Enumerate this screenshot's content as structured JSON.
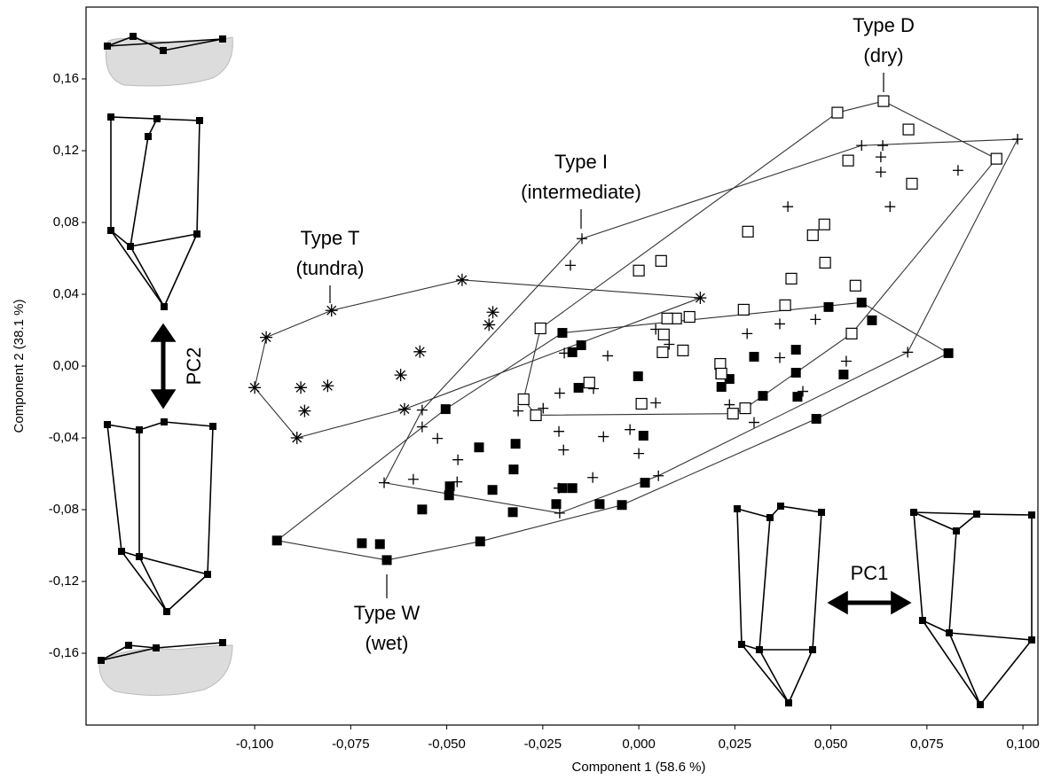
{
  "chart_data": {
    "type": "scatter",
    "x_label": "Component 1 (58.6 %)",
    "y_label": "Component 2 (38.1 %)",
    "xlim": [
      -0.1439,
      0.1039
    ],
    "ylim": [
      -0.2,
      0.2
    ],
    "xticks": [
      {
        "value": -0.1,
        "label": "-0,100"
      },
      {
        "value": -0.075,
        "label": "-0,075"
      },
      {
        "value": -0.05,
        "label": "-0,050"
      },
      {
        "value": -0.025,
        "label": "-0,025"
      },
      {
        "value": 0,
        "label": "0,000"
      },
      {
        "value": 0.025,
        "label": "0,025"
      },
      {
        "value": 0.05,
        "label": "0,050"
      },
      {
        "value": 0.075,
        "label": "0,075"
      },
      {
        "value": 0.1,
        "label": "0,100"
      }
    ],
    "yticks": [
      {
        "value": -0.16,
        "label": "-0,16"
      },
      {
        "value": -0.12,
        "label": "-0,12"
      },
      {
        "value": -0.08,
        "label": "-0,08"
      },
      {
        "value": -0.04,
        "label": "-0,04"
      },
      {
        "value": 0,
        "label": "0,00"
      },
      {
        "value": 0.04,
        "label": "0,04"
      },
      {
        "value": 0.08,
        "label": "0,08"
      },
      {
        "value": 0.12,
        "label": "0,12"
      },
      {
        "value": 0.16,
        "label": "0,16"
      }
    ],
    "grid": false,
    "hull": true,
    "shape_axis_labels": [
      "PC1",
      "PC2"
    ],
    "series": [
      {
        "name": "Type W",
        "description": "(wet)",
        "marker": "square-filled",
        "color": "#000000",
        "x": [
          0.0806,
          0.058,
          0.0494,
          0.0607,
          0.0462,
          0.0409,
          0.0409,
          0.0323,
          0.03,
          0.0212,
          0.0236,
          0.0215,
          0.0413,
          0.0533,
          -0.0002,
          -0.0157,
          -0.015,
          -0.0173,
          -0.0199,
          -0.0503,
          0.0012,
          0.0016,
          -0.0044,
          -0.0173,
          -0.0199,
          -0.0215,
          -0.0102,
          -0.0326,
          -0.0321,
          -0.0416,
          -0.0492,
          -0.0494,
          -0.0381,
          -0.0328,
          -0.0564,
          -0.0413,
          -0.0656,
          -0.0674,
          -0.0721,
          -0.0942
        ],
        "values": [
          0.0072,
          0.0354,
          0.0329,
          0.0255,
          -0.0294,
          0.0091,
          -0.0037,
          -0.0166,
          0.0052,
          -0.0047,
          -0.0072,
          -0.0116,
          -0.0171,
          -0.0047,
          -0.0057,
          -0.0121,
          0.0116,
          0.0077,
          0.0185,
          -0.024,
          -0.0388,
          -0.065,
          -0.0774,
          -0.068,
          -0.068,
          -0.0769,
          -0.0769,
          -0.0576,
          -0.0433,
          -0.0453,
          -0.067,
          -0.072,
          -0.069,
          -0.0814,
          -0.0799,
          -0.0977,
          -0.1081,
          -0.0992,
          -0.0987,
          -0.0972
        ]
      },
      {
        "name": "Type I",
        "description": "(intermediate)",
        "marker": "plus",
        "color": "#000000",
        "x": [
          0.0986,
          0.0831,
          0.0635,
          0.058,
          0.063,
          0.063,
          0.0654,
          0.0388,
          -0.0148,
          -0.0178,
          0.046,
          0.0367,
          0.0282,
          0.0079,
          0.0044,
          -0.0081,
          -0.0194,
          0.0367,
          0.054,
          0.07,
          -0.0118,
          -0.0206,
          0.0044,
          0.0427,
          0.0236,
          0.03,
          -0.0314,
          -0.0249,
          -0.0564,
          -0.0564,
          -0.0208,
          -0.0092,
          -0.0023,
          -0.0196,
          0.0,
          0.0051,
          -0.012,
          -0.0471,
          -0.0524,
          -0.0663,
          -0.0587,
          -0.0473,
          -0.0208,
          -0.0206
        ],
        "values": [
          0.1264,
          0.109,
          0.1229,
          0.1229,
          0.1165,
          0.1081,
          0.0888,
          0.0888,
          0.071,
          0.0561,
          0.026,
          0.0235,
          0.0181,
          0.0121,
          0.0205,
          0.0057,
          0.0072,
          0.0047,
          0.0027,
          0.0077,
          -0.0126,
          -0.0151,
          -0.0205,
          -0.0141,
          -0.0215,
          -0.0314,
          -0.025,
          -0.0235,
          -0.0245,
          -0.0339,
          -0.0364,
          -0.0393,
          -0.0354,
          -0.0467,
          -0.0487,
          -0.0611,
          -0.0621,
          -0.0522,
          -0.0403,
          -0.065,
          -0.0631,
          -0.0645,
          -0.068,
          -0.0819
        ]
      },
      {
        "name": "Type D",
        "description": "(dry)",
        "marker": "square-open",
        "color": "#000000",
        "x": [
          0.0637,
          0.0517,
          0.0931,
          0.0702,
          0.0711,
          0.0545,
          0.0284,
          0.0483,
          0.0453,
          0.0058,
          0.0,
          0.0485,
          0.0397,
          0.0564,
          0.0381,
          0.0273,
          0.0132,
          0.0097,
          0.0074,
          0.0065,
          0.0115,
          0.0062,
          -0.0129,
          0.0007,
          0.0212,
          0.0215,
          0.0245,
          0.0277,
          0.0554,
          -0.0268,
          -0.03,
          -0.0256
        ],
        "values": [
          0.1476,
          0.1412,
          0.1155,
          0.1318,
          0.1016,
          0.1145,
          0.0749,
          0.0789,
          0.0729,
          0.0586,
          0.0532,
          0.0576,
          0.0487,
          0.0448,
          0.0339,
          0.0314,
          0.0274,
          0.0265,
          0.0265,
          0.0176,
          0.0087,
          0.0077,
          -0.0092,
          -0.021,
          0.0012,
          -0.0042,
          -0.0265,
          -0.0235,
          0.0181,
          -0.0274,
          -0.0185,
          0.021
        ]
      },
      {
        "name": "Type T",
        "description": "(tundra)",
        "marker": "asterisk",
        "color": "#000000",
        "x": [
          -0.1,
          -0.097,
          -0.08,
          -0.046,
          0.016,
          -0.089,
          -0.088,
          -0.087,
          -0.081,
          -0.038,
          -0.039,
          -0.057,
          -0.062,
          -0.061
        ],
        "values": [
          -0.012,
          0.016,
          0.031,
          0.048,
          0.038,
          -0.04,
          -0.012,
          -0.025,
          -0.011,
          0.03,
          0.023,
          0.008,
          -0.005,
          -0.024
        ]
      }
    ]
  }
}
